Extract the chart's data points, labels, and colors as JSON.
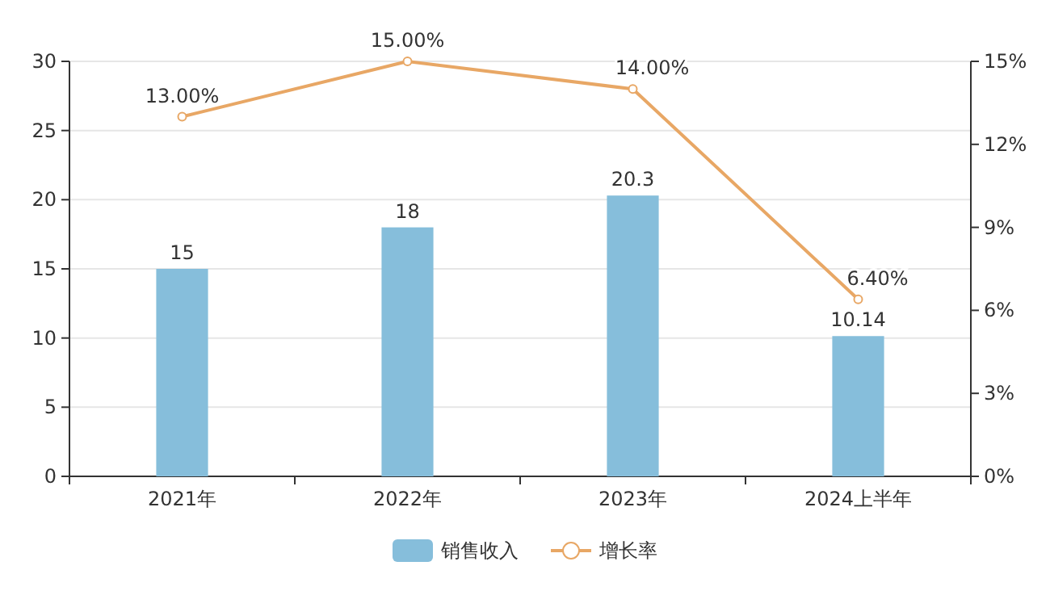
{
  "chart_data": {
    "type": "bar",
    "categories": [
      "2021年",
      "2022年",
      "2023年",
      "2024上半年"
    ],
    "series": [
      {
        "name": "销售收入",
        "color": "#86bedb",
        "values": [
          15,
          18,
          20.3,
          10.14
        ]
      },
      {
        "name": "增长率",
        "type": "line",
        "axis": "y2",
        "color": "#e8a765",
        "marker": "circle",
        "values": [
          13,
          15,
          14,
          6.4
        ],
        "value_labels": [
          "13.00%",
          "15.00%",
          "14.00%",
          "6.40%"
        ]
      }
    ],
    "ylim": [
      0,
      30
    ],
    "yticks": [
      0,
      5,
      10,
      15,
      20,
      25,
      30
    ],
    "y2lim": [
      0,
      15
    ],
    "y2ticks": [
      {
        "value": 0,
        "label": "0%"
      },
      {
        "value": 3,
        "label": "3%"
      },
      {
        "value": 6,
        "label": "6%"
      },
      {
        "value": 9,
        "label": "9%"
      },
      {
        "value": 12,
        "label": "12%"
      },
      {
        "value": 15,
        "label": "15%"
      }
    ],
    "data_labels": true,
    "grid": "y",
    "legend": "bottom"
  }
}
